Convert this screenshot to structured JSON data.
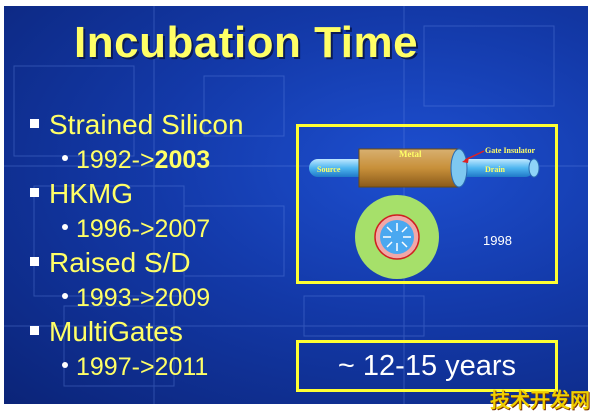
{
  "slide": {
    "title": "Incubation Time",
    "bullets": [
      {
        "label": "Strained Silicon",
        "sub_prefix": "1992->",
        "sub_suffix": "2003"
      },
      {
        "label": "HKMG",
        "sub_prefix": "1996->2007",
        "sub_suffix": ""
      },
      {
        "label": "Raised S/D",
        "sub_prefix": "1993->2009",
        "sub_suffix": ""
      },
      {
        "label": "MultiGates",
        "sub_prefix": "1997->2011",
        "sub_suffix": ""
      }
    ],
    "diagram": {
      "metal_label": "Metal",
      "gate_insulator_label": "Gate Insulator",
      "source_label": "Source",
      "drain_label": "Drain",
      "year_label": "1998"
    },
    "years_text": "~ 12-15 years"
  },
  "watermark": "技术开发网",
  "colors": {
    "title": "#ffff66",
    "box_border": "#ffff33",
    "background": "#1339a8"
  }
}
